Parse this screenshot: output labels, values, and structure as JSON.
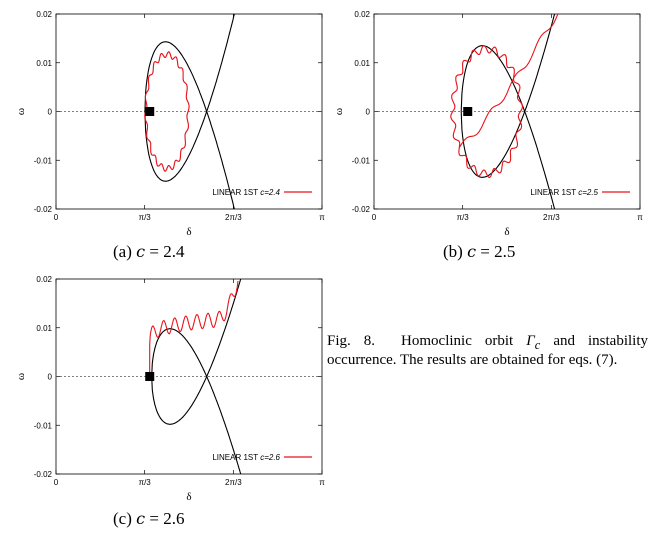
{
  "chart_data": [
    {
      "type": "line",
      "xlabel": "δ",
      "ylabel": "ω",
      "xlim": [
        0,
        3.14159
      ],
      "ylim": [
        -0.02,
        0.02
      ],
      "xtick_labels": [
        "0",
        "π/3",
        "2π/3",
        "π"
      ],
      "ytick_labels": [
        "0.02",
        "0.01",
        "0",
        "-0.01",
        "-0.02"
      ],
      "legend": {
        "position": "bottom-right",
        "label_prefix": "LINEAR 1ST ",
        "c_label": "c=2.4"
      },
      "equilibrium_point": [
        1.107,
        0.0
      ],
      "homoclinic_orbit": {
        "saddle_delta": 1.78,
        "max_omega": 0.0143,
        "min_omega": -0.0143,
        "left_delta": 1.05
      },
      "series": [
        {
          "name": "LINEAR 1ST c=2.4",
          "behavior": "bounded oscillation around equilibrium",
          "delta_range": [
            1.06,
            1.56
          ],
          "omega_range": [
            -0.0115,
            0.0118
          ]
        }
      ],
      "caption_letter": "(a)",
      "caption_value": "2.4"
    },
    {
      "type": "line",
      "xlabel": "δ",
      "ylabel": "ω",
      "xlim": [
        0,
        3.14159
      ],
      "ylim": [
        -0.02,
        0.02
      ],
      "xtick_labels": [
        "0",
        "π/3",
        "2π/3",
        "π"
      ],
      "ytick_labels": [
        "0.02",
        "0.01",
        "0",
        "-0.01",
        "-0.02"
      ],
      "legend": {
        "position": "bottom-right",
        "label_prefix": "LINEAR 1ST ",
        "c_label": "c=2.5"
      },
      "equilibrium_point": [
        1.107,
        0.0
      ],
      "homoclinic_orbit": {
        "saddle_delta": 1.78,
        "max_omega": 0.0135,
        "min_omega": -0.0135,
        "left_delta": 1.03
      },
      "series": [
        {
          "name": "LINEAR 1ST c=2.5",
          "behavior": "oscillation near separatrix, escapes along unstable branch",
          "delta_range": [
            1.03,
            2.2
          ],
          "omega_range": [
            -0.0135,
            0.02
          ]
        }
      ],
      "caption_letter": "(b)",
      "caption_value": "2.5"
    },
    {
      "type": "line",
      "xlabel": "δ",
      "ylabel": "ω",
      "xlim": [
        0,
        3.14159
      ],
      "ylim": [
        -0.02,
        0.02
      ],
      "xtick_labels": [
        "0",
        "π/3",
        "2π/3",
        "π"
      ],
      "ytick_labels": [
        "0.02",
        "0.01",
        "0",
        "-0.01",
        "-0.02"
      ],
      "legend": {
        "position": "bottom-right",
        "label_prefix": "LINEAR 1ST ",
        "c_label": "c=2.6"
      },
      "equilibrium_point": [
        1.107,
        0.0
      ],
      "homoclinic_orbit": {
        "saddle_delta": 1.78,
        "max_omega": 0.0098,
        "min_omega": -0.0098,
        "left_delta": 1.13
      },
      "series": [
        {
          "name": "LINEAR 1ST c=2.6",
          "behavior": "immediate instability, leaves along upper branch",
          "delta_range": [
            1.107,
            2.15
          ],
          "omega_range": [
            0.0,
            0.02
          ]
        }
      ],
      "caption_letter": "(c)",
      "caption_value": "2.6"
    }
  ],
  "colors": {
    "trajectory": "#e8141c",
    "orbit": "#000000",
    "zero_line": "#555555"
  },
  "figure_caption": {
    "label": "Fig. 8.",
    "text_before": "Homoclinic orbit ",
    "symbol": "Γ",
    "subscript": "c",
    "text_after": " and instability occurrence. The results are obtained for eqs. (7)."
  }
}
